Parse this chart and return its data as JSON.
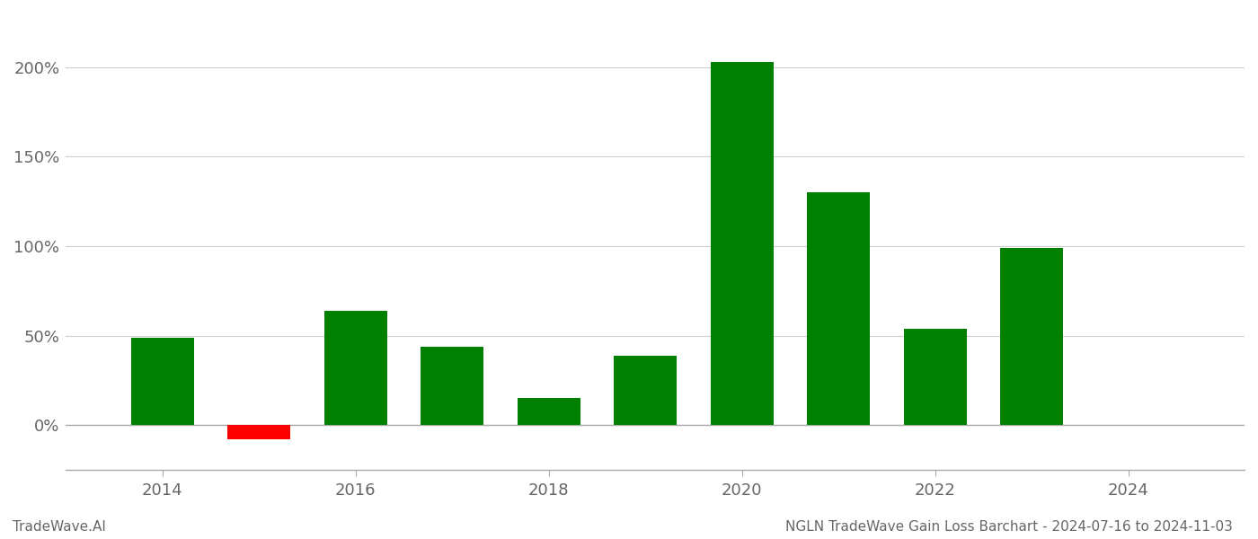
{
  "years": [
    2014,
    2015,
    2016,
    2017,
    2018,
    2019,
    2020,
    2021,
    2022,
    2023
  ],
  "values": [
    49.0,
    -8.0,
    64.0,
    44.0,
    15.0,
    39.0,
    203.0,
    130.0,
    54.0,
    99.0
  ],
  "colors": [
    "#008000",
    "#ff0000",
    "#008000",
    "#008000",
    "#008000",
    "#008000",
    "#008000",
    "#008000",
    "#008000",
    "#008000"
  ],
  "title": "NGLN TradeWave Gain Loss Barchart - 2024-07-16 to 2024-11-03",
  "watermark": "TradeWave.AI",
  "bar_width": 0.65,
  "xlim": [
    2013.0,
    2025.2
  ],
  "ylim": [
    -25,
    230
  ],
  "yticks": [
    0,
    50,
    100,
    150,
    200
  ],
  "ytick_labels": [
    "0%",
    "50%",
    "100%",
    "150%",
    "200%"
  ],
  "xtick_positions": [
    2014,
    2016,
    2018,
    2020,
    2022,
    2024
  ],
  "background_color": "#ffffff",
  "grid_color": "#cccccc",
  "grid_linewidth": 0.8,
  "axis_color": "#aaaaaa",
  "font_color": "#666666",
  "title_fontsize": 11,
  "tick_fontsize": 13,
  "watermark_fontsize": 11
}
